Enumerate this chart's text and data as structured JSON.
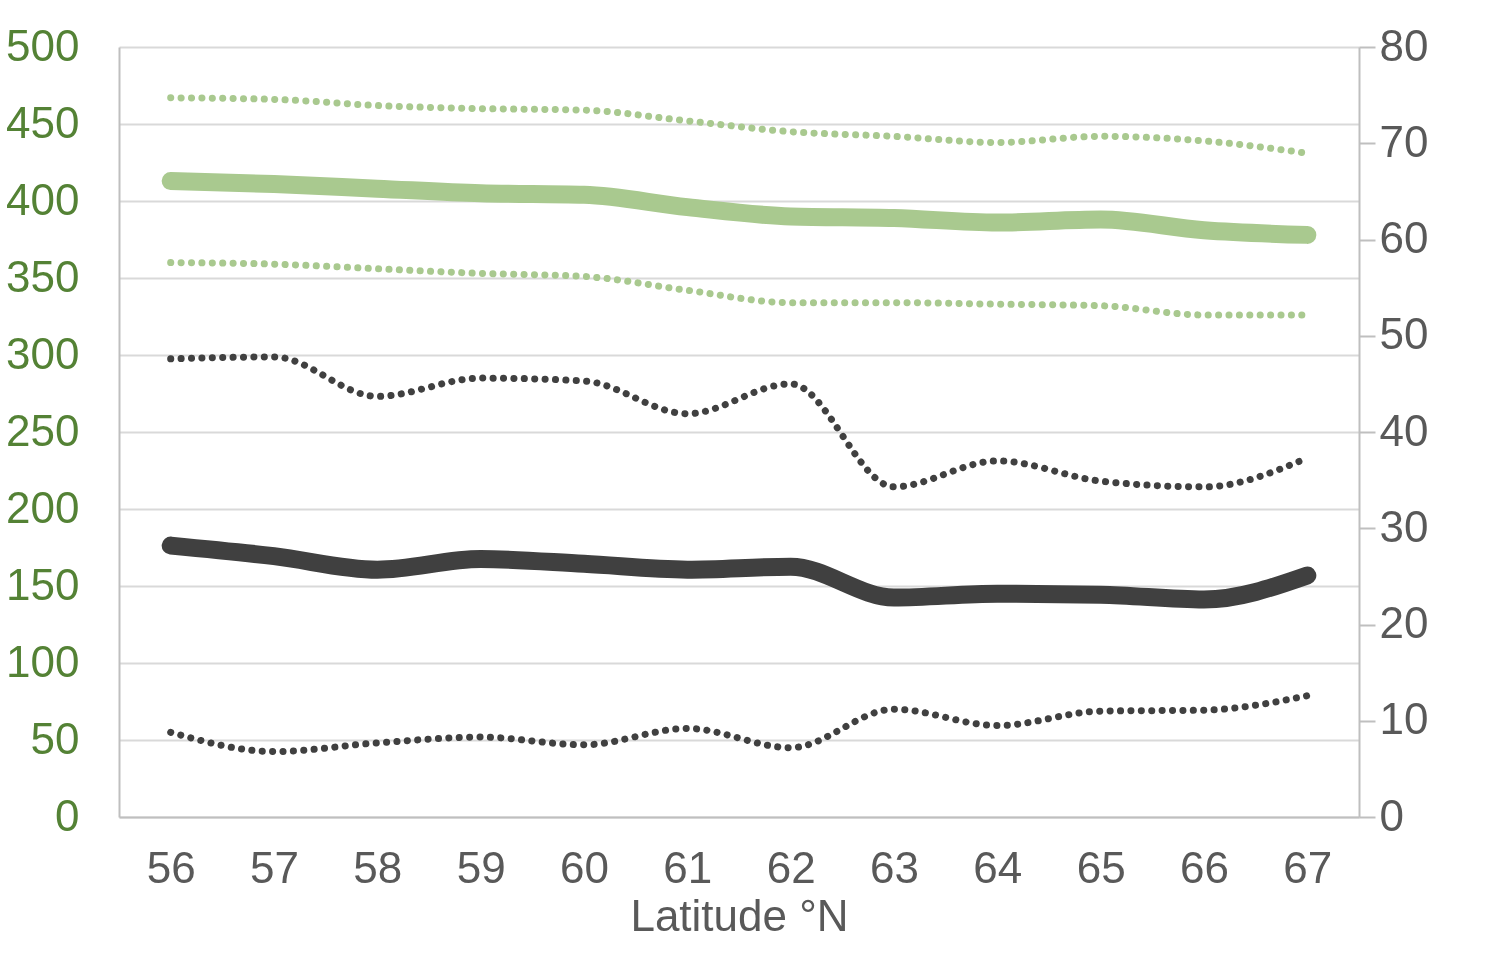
{
  "chart_data": {
    "type": "line",
    "xlabel": "Latitude °N",
    "categories": [
      "56",
      "57",
      "58",
      "59",
      "60",
      "61",
      "62",
      "63",
      "64",
      "65",
      "66",
      "67"
    ],
    "series": [
      {
        "color": "#a9c98f",
        "line_style": "dotted",
        "values": [
          467,
          466,
          462,
          460,
          459,
          452,
          445,
          442,
          438,
          442,
          439,
          431
        ]
      },
      {
        "color": "#a9c98f",
        "line_style": "solid",
        "values": [
          413,
          411,
          408,
          405,
          404,
          396,
          390,
          389,
          386,
          388,
          381,
          378
        ]
      },
      {
        "color": "#a9c98f",
        "line_style": "dotted",
        "values": [
          360,
          359,
          356,
          353,
          351,
          342,
          334,
          334,
          333,
          332,
          326,
          326
        ]
      },
      {
        "color": "#404040",
        "line_style": "dotted",
        "axis": "y2",
        "values": [
          47.6,
          47.8,
          43.7,
          45.6,
          45.3,
          41.9,
          45.0,
          34.3,
          37.0,
          34.9,
          34.3,
          37.3
        ]
      },
      {
        "color": "#404040",
        "line_style": "solid",
        "axis": "y2",
        "values": [
          28.2,
          27.1,
          25.7,
          26.8,
          26.3,
          25.7,
          26.0,
          22.8,
          23.2,
          23.1,
          22.6,
          25.1
        ]
      },
      {
        "color": "#404040",
        "line_style": "dotted",
        "axis": "y2",
        "values": [
          8.8,
          6.8,
          7.7,
          8.3,
          7.5,
          9.2,
          7.2,
          11.2,
          9.5,
          11.0,
          11.1,
          12.6
        ]
      }
    ],
    "ylim": [
      0,
      500
    ],
    "yticks": [
      0,
      50,
      100,
      150,
      200,
      250,
      300,
      350,
      400,
      450,
      500
    ],
    "y2lim": [
      0,
      80
    ],
    "y2ticks": [
      0,
      10,
      20,
      30,
      40,
      50,
      60,
      70,
      80
    ],
    "grid": "y"
  }
}
